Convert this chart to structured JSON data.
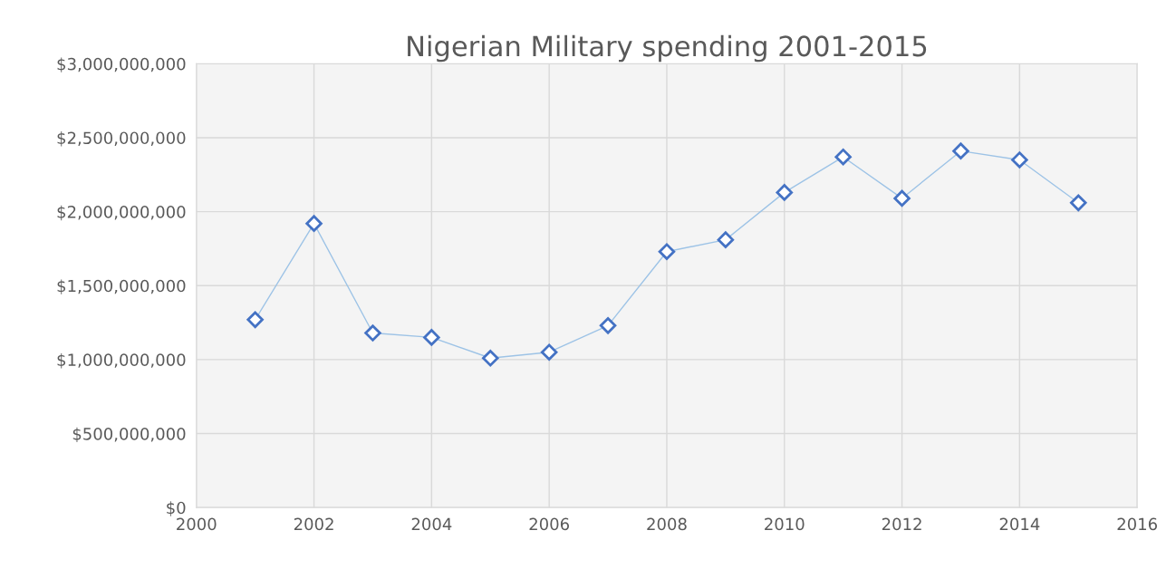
{
  "chart_data": {
    "type": "line",
    "title": "Nigerian Military spending 2001-2015",
    "x": [
      2001,
      2002,
      2003,
      2004,
      2005,
      2006,
      2007,
      2008,
      2009,
      2010,
      2011,
      2012,
      2013,
      2014,
      2015
    ],
    "series": [
      {
        "color": "#4472c4",
        "values": [
          1270000000,
          1920000000,
          1180000000,
          1150000000,
          1010000000,
          1050000000,
          1230000000,
          1730000000,
          1810000000,
          2130000000,
          2370000000,
          2090000000,
          2410000000,
          2350000000,
          2060000000
        ]
      }
    ],
    "xlim": [
      2000,
      2016
    ],
    "xticks": [
      2000,
      2002,
      2004,
      2006,
      2008,
      2010,
      2012,
      2014,
      2016
    ],
    "ylim": [
      0,
      3000000000
    ],
    "yticks": [
      {
        "value": 0,
        "label": "$0"
      },
      {
        "value": 500000000,
        "label": "$500,000,000"
      },
      {
        "value": 1000000000,
        "label": "$1,000,000,000"
      },
      {
        "value": 1500000000,
        "label": "$1,500,000,000"
      },
      {
        "value": 2000000000,
        "label": "$2,000,000,000"
      },
      {
        "value": 2500000000,
        "label": "$2,500,000,000"
      },
      {
        "value": 3000000000,
        "label": "$3,000,000,000"
      }
    ],
    "grid": true,
    "marker": "diamond",
    "line_style": "solid"
  }
}
